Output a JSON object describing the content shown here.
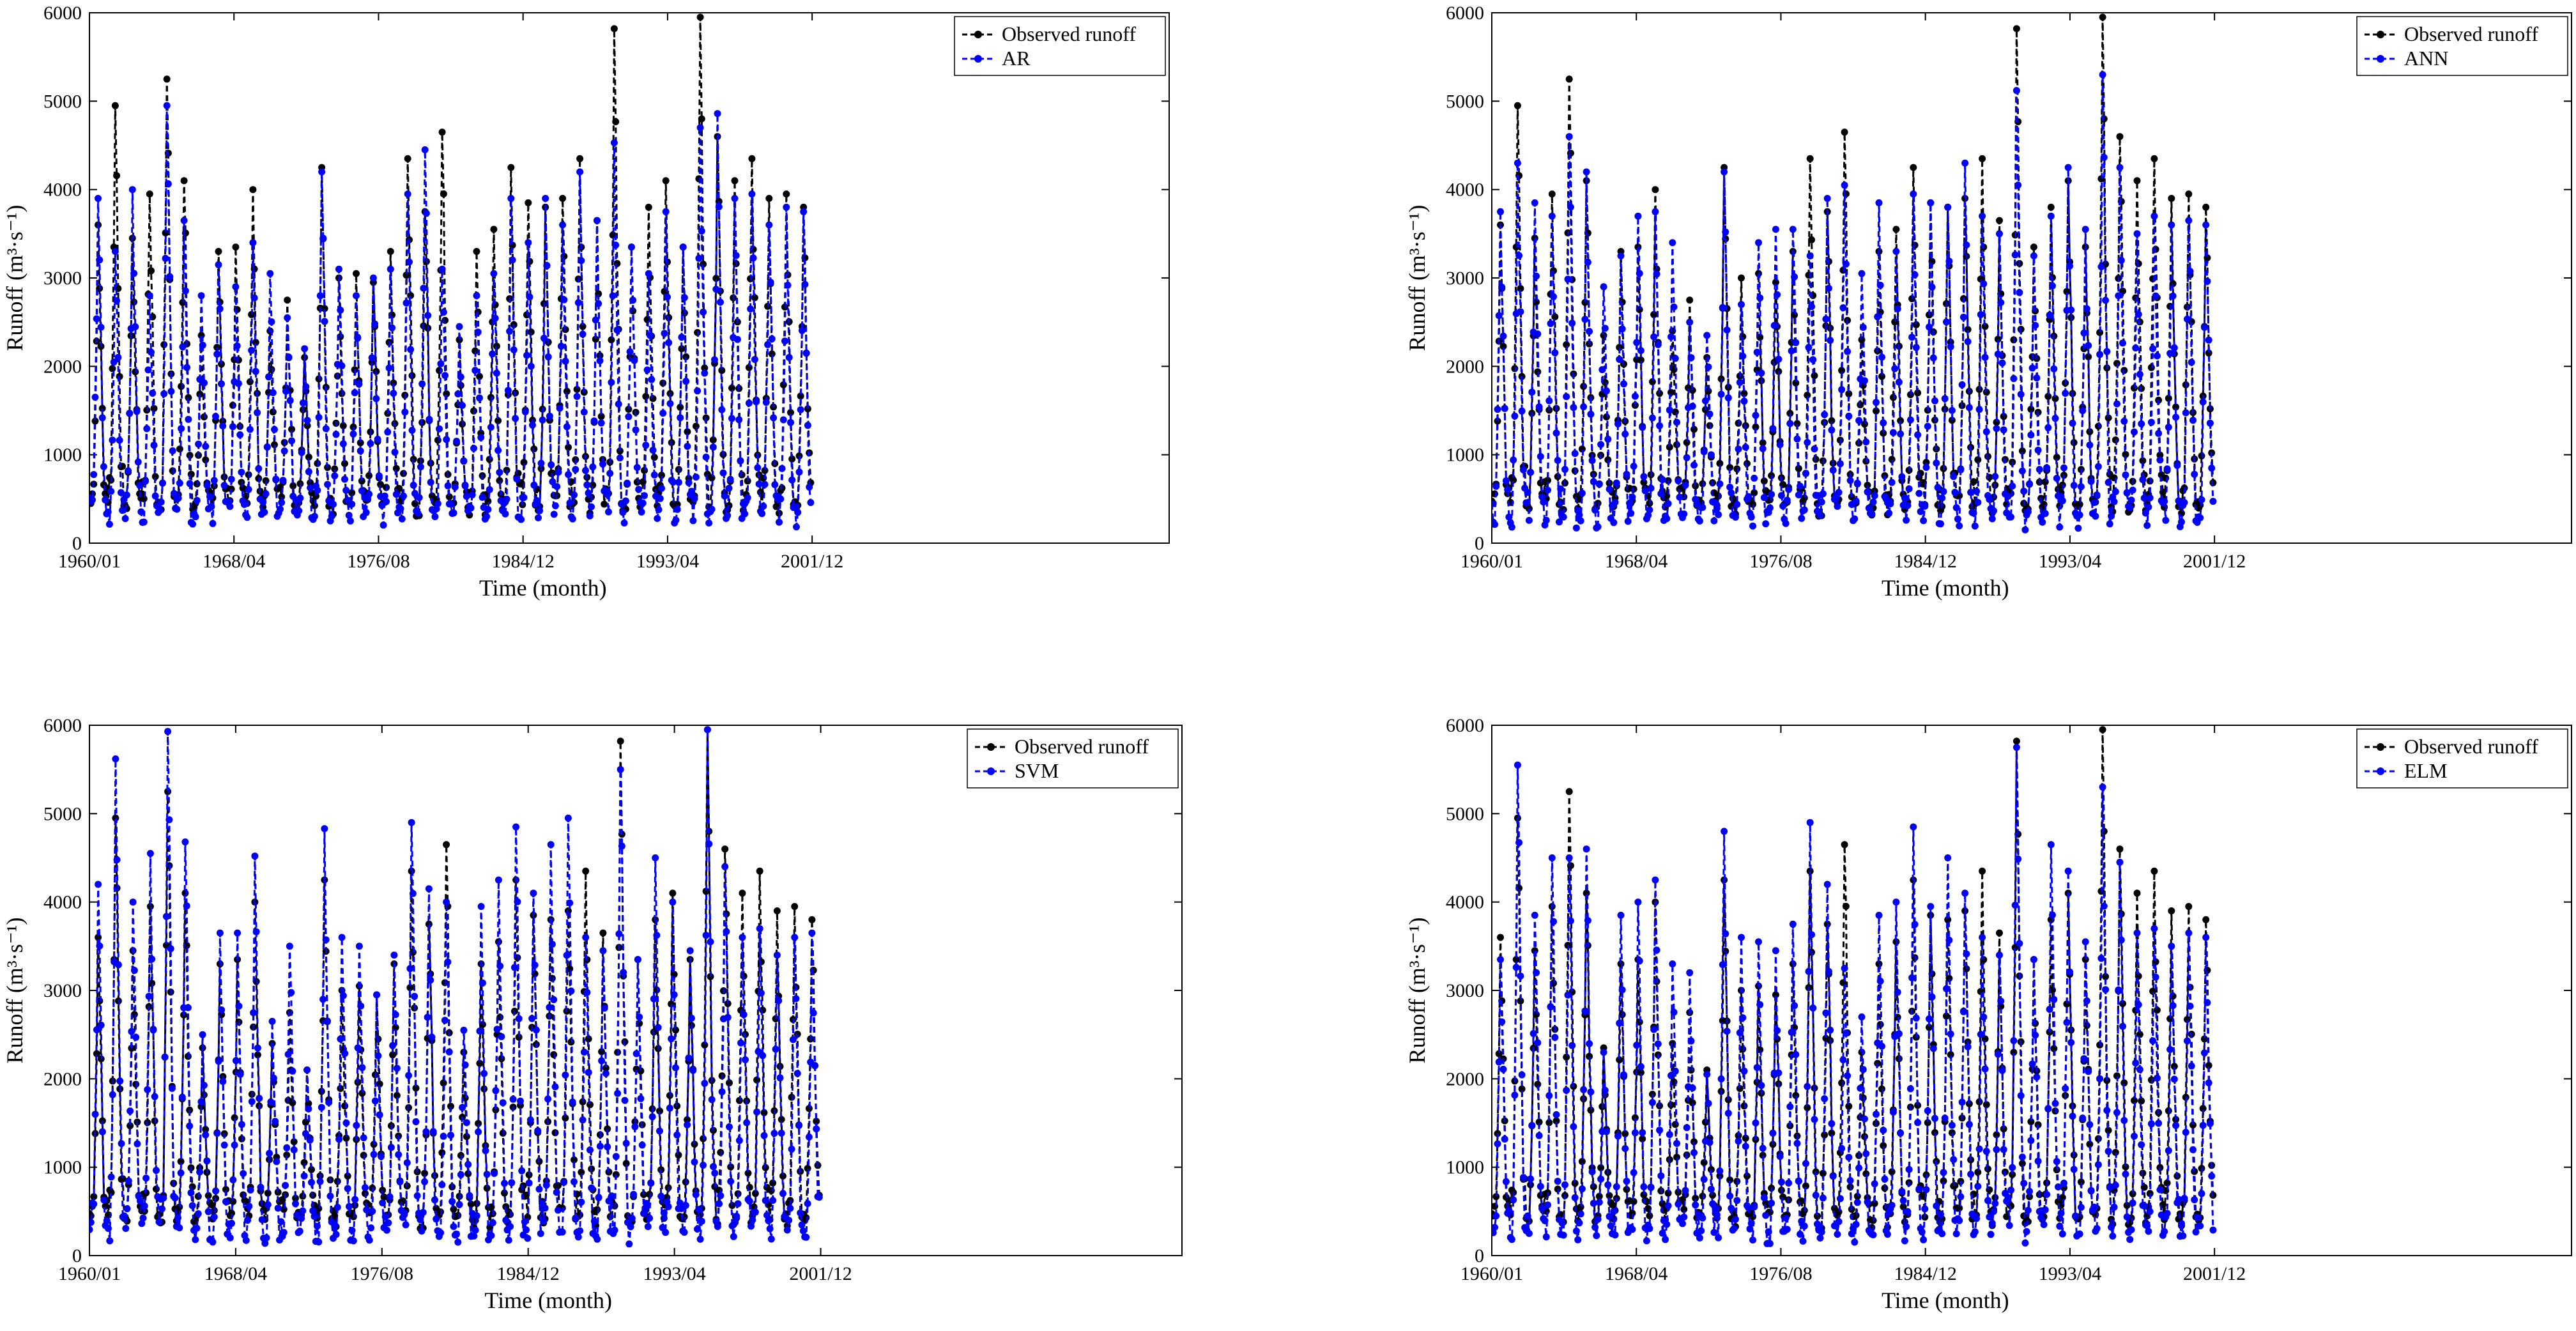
{
  "figure": {
    "colors": {
      "observed": "#000000",
      "model": "#0000ff",
      "axis": "#000000",
      "background": "#ffffff"
    }
  },
  "chart_data": [
    {
      "type": "line",
      "model": "AR",
      "legend": [
        "Observed runoff",
        "AR"
      ],
      "xlabel": "Time (month)",
      "ylabel": "Runoff (m³·s⁻¹)",
      "xticks": [
        "1960/01",
        "1968/04",
        "1976/08",
        "1984/12",
        "1993/04",
        "2001/12"
      ],
      "yticks": [
        0,
        1000,
        2000,
        3000,
        4000,
        5000,
        6000
      ],
      "ylim": [
        0,
        6000
      ],
      "xlim": [
        1,
        754
      ],
      "months": 504,
      "annual_peaks_observed": [
        3600,
        4950,
        3450,
        3950,
        5250,
        4100,
        2350,
        3300,
        3350,
        4000,
        2400,
        2750,
        2100,
        4250,
        3000,
        3050,
        2950,
        3300,
        4350,
        3750,
        4650,
        2300,
        3300,
        3550,
        4250,
        3850,
        3800,
        3900,
        4350,
        3650,
        5820,
        3350,
        3800,
        4100,
        3350,
        5950,
        4600,
        4100,
        4350,
        3900,
        3950,
        3800
      ],
      "annual_peaks_model": [
        3900,
        3300,
        4000,
        2800,
        4950,
        3650,
        2800,
        3150,
        2900,
        3400,
        3050,
        2550,
        2200,
        4200,
        3100,
        2800,
        3000,
        3100,
        3950,
        4450,
        3100,
        2450,
        2800,
        3050,
        3900,
        3400,
        3900,
        3600,
        4200,
        3650,
        4530,
        3350,
        3050,
        3750,
        3350,
        4700,
        4860,
        3900,
        3950,
        3600,
        3800,
        3750
      ],
      "annual_min_observed": [
        380,
        400,
        390,
        420,
        370,
        410,
        430,
        380,
        400,
        390,
        410,
        420,
        380,
        400,
        390,
        410,
        420,
        380,
        400,
        390,
        410,
        420,
        380,
        400,
        390,
        410,
        420,
        380,
        400,
        390,
        410,
        420,
        380,
        400,
        390,
        410,
        420,
        380,
        400,
        390,
        410,
        420
      ],
      "annual_min_model": [
        300,
        280,
        320,
        260,
        310,
        290,
        270,
        300,
        280,
        320,
        260,
        310,
        290,
        270,
        300,
        280,
        320,
        260,
        310,
        290,
        270,
        300,
        280,
        320,
        260,
        310,
        290,
        270,
        300,
        280,
        320,
        260,
        310,
        290,
        270,
        300,
        280,
        320,
        260,
        310,
        290,
        270
      ]
    },
    {
      "type": "line",
      "model": "ANN",
      "legend": [
        "Observed runoff",
        "ANN"
      ],
      "xlabel": "Time (month)",
      "ylabel": "Runoff (m³·s⁻¹)",
      "xticks": [
        "1960/01",
        "1968/04",
        "1976/08",
        "1984/12",
        "1993/04",
        "2001/12"
      ],
      "yticks": [
        0,
        1000,
        2000,
        3000,
        4000,
        5000,
        6000
      ],
      "ylim": [
        0,
        6000
      ],
      "xlim": [
        1,
        754
      ],
      "months": 504,
      "annual_peaks_observed": [
        3600,
        4950,
        3450,
        3950,
        5250,
        4100,
        2350,
        3300,
        3350,
        4000,
        2400,
        2750,
        2100,
        4250,
        3000,
        3050,
        2950,
        3300,
        4350,
        3750,
        4650,
        2300,
        3300,
        3550,
        4250,
        3850,
        3800,
        3900,
        4350,
        3650,
        5820,
        3350,
        3800,
        4100,
        3350,
        5950,
        4600,
        4100,
        4350,
        3900,
        3950,
        3800
      ],
      "annual_peaks_model": [
        3750,
        4300,
        3850,
        3700,
        4600,
        4200,
        2900,
        3250,
        3700,
        3750,
        3400,
        2500,
        2350,
        4200,
        2700,
        3400,
        3550,
        3550,
        3250,
        3900,
        4050,
        3050,
        3850,
        3300,
        3950,
        3850,
        3800,
        4300,
        3700,
        3500,
        5120,
        3250,
        3700,
        4250,
        3550,
        5300,
        4250,
        3500,
        3700,
        3600,
        3650,
        3600
      ],
      "annual_min_observed": [
        380,
        400,
        390,
        420,
        370,
        410,
        430,
        380,
        400,
        390,
        410,
        420,
        380,
        400,
        390,
        410,
        420,
        380,
        400,
        390,
        410,
        420,
        380,
        400,
        390,
        410,
        420,
        380,
        400,
        390,
        410,
        420,
        380,
        400,
        390,
        410,
        420,
        380,
        400,
        390,
        410,
        420
      ],
      "annual_min_model": [
        260,
        240,
        280,
        250,
        230,
        270,
        260,
        240,
        280,
        250,
        230,
        270,
        260,
        240,
        280,
        250,
        230,
        270,
        260,
        240,
        280,
        250,
        230,
        270,
        260,
        240,
        280,
        250,
        230,
        270,
        260,
        240,
        280,
        250,
        230,
        270,
        260,
        240,
        280,
        250,
        230,
        270
      ]
    },
    {
      "type": "line",
      "model": "SVM",
      "legend": [
        "Observed runoff",
        "SVM"
      ],
      "xlabel": "Time (month)",
      "ylabel": "Runoff (m³·s⁻¹)",
      "xticks": [
        "1960/01",
        "1968/04",
        "1976/08",
        "1984/12",
        "1993/04",
        "2001/12"
      ],
      "yticks": [
        0,
        1000,
        2000,
        3000,
        4000,
        5000,
        6000
      ],
      "ylim": [
        0,
        6000
      ],
      "xlim": [
        1,
        754
      ],
      "months": 504,
      "annual_peaks_observed": [
        3600,
        4950,
        3450,
        3950,
        5250,
        4100,
        2350,
        3300,
        3350,
        4000,
        2400,
        2750,
        2100,
        4250,
        3000,
        3050,
        2950,
        3300,
        4350,
        3750,
        4650,
        2300,
        3300,
        3550,
        4250,
        3850,
        3800,
        3900,
        4350,
        3650,
        5820,
        3350,
        3800,
        4100,
        3350,
        5950,
        4600,
        4100,
        4350,
        3900,
        3950,
        3800
      ],
      "annual_peaks_model": [
        4200,
        5620,
        4000,
        4550,
        5930,
        4680,
        2500,
        3650,
        3650,
        4520,
        2650,
        3500,
        2100,
        4830,
        3600,
        3500,
        2950,
        3400,
        4900,
        4150,
        4000,
        2550,
        3950,
        4250,
        4850,
        4100,
        4650,
        4950,
        3600,
        3450,
        5500,
        3350,
        4500,
        4000,
        3450,
        5950,
        4400,
        3600,
        3700,
        3400,
        3600,
        3650
      ],
      "annual_min_observed": [
        380,
        400,
        390,
        420,
        370,
        410,
        430,
        380,
        400,
        390,
        410,
        420,
        380,
        400,
        390,
        410,
        420,
        380,
        400,
        390,
        410,
        420,
        380,
        400,
        390,
        410,
        420,
        380,
        400,
        390,
        410,
        420,
        380,
        400,
        390,
        410,
        420,
        380,
        400,
        390,
        410,
        420
      ],
      "annual_min_model": [
        240,
        220,
        260,
        230,
        210,
        250,
        240,
        220,
        260,
        230,
        210,
        250,
        240,
        220,
        260,
        230,
        210,
        250,
        240,
        220,
        260,
        230,
        210,
        250,
        240,
        220,
        260,
        230,
        210,
        250,
        240,
        220,
        260,
        230,
        210,
        250,
        240,
        220,
        260,
        230,
        210,
        250
      ]
    },
    {
      "type": "line",
      "model": "ELM",
      "legend": [
        "Observed runoff",
        "ELM"
      ],
      "xlabel": "Time (month)",
      "ylabel": "Runoff (m³·s⁻¹)",
      "xticks": [
        "1960/01",
        "1968/04",
        "1976/08",
        "1984/12",
        "1993/04",
        "2001/12"
      ],
      "yticks": [
        0,
        1000,
        2000,
        3000,
        4000,
        5000,
        6000
      ],
      "ylim": [
        0,
        6000
      ],
      "xlim": [
        1,
        754
      ],
      "months": 504,
      "annual_peaks_observed": [
        3600,
        4950,
        3450,
        3950,
        5250,
        4100,
        2350,
        3300,
        3350,
        4000,
        2400,
        2750,
        2100,
        4250,
        3000,
        3050,
        2950,
        3300,
        4350,
        3750,
        4650,
        2300,
        3300,
        3550,
        4250,
        3850,
        3800,
        3900,
        4350,
        3650,
        5820,
        3350,
        3800,
        4100,
        3350,
        5950,
        4600,
        4100,
        4350,
        3900,
        3950,
        3800
      ],
      "annual_peaks_model": [
        3350,
        5550,
        3850,
        4500,
        4500,
        4600,
        2300,
        3850,
        4000,
        4250,
        3300,
        3200,
        2050,
        4800,
        3600,
        3550,
        3450,
        3750,
        4900,
        4200,
        3250,
        2700,
        3850,
        4000,
        4850,
        3950,
        4500,
        4100,
        3600,
        3400,
        5750,
        3350,
        4650,
        4350,
        3550,
        5300,
        4450,
        3650,
        3700,
        3500,
        3650,
        3600
      ],
      "annual_min_observed": [
        380,
        400,
        390,
        420,
        370,
        410,
        430,
        380,
        400,
        390,
        410,
        420,
        380,
        400,
        390,
        410,
        420,
        380,
        400,
        390,
        410,
        420,
        380,
        400,
        390,
        410,
        420,
        380,
        400,
        390,
        410,
        420,
        380,
        400,
        390,
        410,
        420,
        380,
        400,
        390,
        410,
        420
      ],
      "annual_min_model": [
        250,
        230,
        270,
        240,
        220,
        260,
        250,
        230,
        270,
        240,
        220,
        260,
        250,
        230,
        270,
        240,
        220,
        260,
        250,
        230,
        270,
        240,
        220,
        260,
        250,
        230,
        270,
        240,
        220,
        260,
        250,
        230,
        270,
        240,
        220,
        260,
        250,
        230,
        270,
        240,
        220,
        260
      ]
    }
  ]
}
